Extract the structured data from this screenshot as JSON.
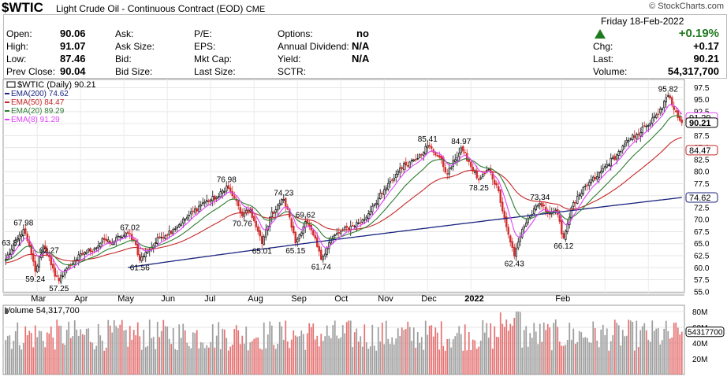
{
  "header": {
    "symbol": "$WTIC",
    "description": "Light Crude Oil - Continuous Contract (EOD)",
    "exchange": "CME",
    "source": "© StockCharts.com",
    "day_date": "Friday  18-Feb-2022",
    "quote": [
      {
        "label": "Open:",
        "value": "90.06"
      },
      {
        "label": "High:",
        "value": "91.07"
      },
      {
        "label": "Low:",
        "value": "87.46"
      },
      {
        "label": "Prev Close:",
        "value": "90.04"
      }
    ],
    "col2": [
      "Ask:",
      "Ask Size:",
      "Bid:",
      "Bid Size:"
    ],
    "col3": [
      "P/E:",
      "EPS:",
      "Mkt Cap:",
      "Last Size:"
    ],
    "col4": [
      {
        "label": "Options:",
        "value": "no"
      },
      {
        "label": "Annual Dividend:",
        "value": "N/A"
      },
      {
        "label": "Yield:",
        "value": "N/A"
      },
      {
        "label": "SCTR:",
        "value": ""
      }
    ],
    "change_pct": "+0.19%",
    "stats": [
      {
        "label": "Chg:",
        "value": "+0.17"
      },
      {
        "label": "Last:",
        "value": "90.21"
      },
      {
        "label": "Volume:",
        "value": "54,317,700"
      }
    ]
  },
  "chart_data": [
    {
      "type": "line",
      "title": "$WTIC (Daily) 90.21",
      "legend": [
        {
          "name": "EMA(200) 74.62",
          "color": "#1a237e"
        },
        {
          "name": "EMA(50) 84.47",
          "color": "#c62828"
        },
        {
          "name": "EMA(20) 89.29",
          "color": "#2e7d32"
        },
        {
          "name": "EMA(8) 91.29",
          "color": "#e040fb"
        }
      ],
      "legend_placement": "top-left",
      "x_labels": [
        "Mar",
        "Apr",
        "May",
        "Jun",
        "Jul",
        "Aug",
        "Sep",
        "Oct",
        "Nov",
        "Dec",
        "2022",
        "Feb"
      ],
      "y_ticks": [
        55.0,
        57.5,
        60.0,
        62.5,
        65.0,
        67.5,
        70.0,
        72.5,
        75.0,
        77.5,
        80.0,
        82.5,
        85.0,
        87.5,
        90.0,
        92.5,
        95.0,
        97.5
      ],
      "ylim": [
        54.8,
        99.2
      ],
      "y_axis_side": "right",
      "grid": true,
      "price_anchors": [
        [
          0,
          61.8
        ],
        [
          3,
          63.81
        ],
        [
          9,
          67.98
        ],
        [
          13,
          62.8
        ],
        [
          15,
          59.24
        ],
        [
          19,
          64.5
        ],
        [
          22,
          62.27
        ],
        [
          25,
          58.2
        ],
        [
          27,
          57.25
        ],
        [
          30,
          59.5
        ],
        [
          35,
          61.5
        ],
        [
          40,
          63.2
        ],
        [
          45,
          64.0
        ],
        [
          50,
          65.8
        ],
        [
          54,
          65.2
        ],
        [
          58,
          66.5
        ],
        [
          63,
          67.02
        ],
        [
          66,
          64.8
        ],
        [
          68,
          61.56
        ],
        [
          72,
          63.5
        ],
        [
          78,
          66.2
        ],
        [
          85,
          68.0
        ],
        [
          92,
          70.5
        ],
        [
          100,
          73.5
        ],
        [
          108,
          74.8
        ],
        [
          112,
          76.98
        ],
        [
          116,
          74.5
        ],
        [
          120,
          70.76
        ],
        [
          124,
          72.0
        ],
        [
          127,
          68.5
        ],
        [
          130,
          65.01
        ],
        [
          134,
          70.5
        ],
        [
          138,
          73.0
        ],
        [
          141,
          74.23
        ],
        [
          144,
          70.5
        ],
        [
          147,
          65.15
        ],
        [
          152,
          69.62
        ],
        [
          156,
          66.8
        ],
        [
          160,
          61.74
        ],
        [
          165,
          66.0
        ],
        [
          170,
          67.5
        ],
        [
          176,
          68.8
        ],
        [
          182,
          70.0
        ],
        [
          186,
          72.8
        ],
        [
          191,
          75.5
        ],
        [
          196,
          78.2
        ],
        [
          200,
          80.8
        ],
        [
          205,
          82.0
        ],
        [
          210,
          83.5
        ],
        [
          214,
          85.41
        ],
        [
          220,
          83.0
        ],
        [
          224,
          79.5
        ],
        [
          228,
          82.5
        ],
        [
          231,
          84.97
        ],
        [
          236,
          81.0
        ],
        [
          240,
          78.25
        ],
        [
          245,
          80.5
        ],
        [
          250,
          76.0
        ],
        [
          254,
          68.5
        ],
        [
          258,
          62.43
        ],
        [
          262,
          68.0
        ],
        [
          266,
          70.8
        ],
        [
          271,
          73.34
        ],
        [
          275,
          71.5
        ],
        [
          279,
          72.0
        ],
        [
          283,
          66.12
        ],
        [
          287,
          72.5
        ],
        [
          292,
          75.5
        ],
        [
          296,
          77.8
        ],
        [
          300,
          79.0
        ],
        [
          305,
          81.5
        ],
        [
          310,
          83.5
        ],
        [
          316,
          86.5
        ],
        [
          320,
          87.8
        ],
        [
          325,
          89.5
        ],
        [
          331,
          92.0
        ],
        [
          336,
          95.82
        ],
        [
          340,
          92.5
        ],
        [
          343,
          90.21
        ]
      ],
      "ema_levels": {
        "ema200_end": 74.62,
        "ema50_end": 84.47,
        "ema20_end": 89.29,
        "ema8_end": 91.29
      },
      "annotations": [
        {
          "text": "63.81",
          "at": 3,
          "value": 63.81,
          "pos": "above"
        },
        {
          "text": "67.98",
          "at": 9,
          "value": 67.98,
          "pos": "above"
        },
        {
          "text": "59.24",
          "at": 15,
          "value": 59.24,
          "pos": "below"
        },
        {
          "text": "62.27",
          "at": 22,
          "value": 62.27,
          "pos": "above"
        },
        {
          "text": "57.25",
          "at": 27,
          "value": 57.25,
          "pos": "below"
        },
        {
          "text": "67.02",
          "at": 63,
          "value": 67.02,
          "pos": "above"
        },
        {
          "text": "61.56",
          "at": 68,
          "value": 61.56,
          "pos": "below"
        },
        {
          "text": "76.98",
          "at": 112,
          "value": 76.98,
          "pos": "above"
        },
        {
          "text": "70.76",
          "at": 120,
          "value": 70.76,
          "pos": "below"
        },
        {
          "text": "65.01",
          "at": 130,
          "value": 65.01,
          "pos": "below"
        },
        {
          "text": "74.23",
          "at": 141,
          "value": 74.23,
          "pos": "above"
        },
        {
          "text": "65.15",
          "at": 147,
          "value": 65.15,
          "pos": "below"
        },
        {
          "text": "69.62",
          "at": 152,
          "value": 69.62,
          "pos": "above"
        },
        {
          "text": "61.74",
          "at": 160,
          "value": 61.74,
          "pos": "below"
        },
        {
          "text": "85.41",
          "at": 214,
          "value": 85.41,
          "pos": "above"
        },
        {
          "text": "84.97",
          "at": 231,
          "value": 84.97,
          "pos": "above"
        },
        {
          "text": "78.25",
          "at": 240,
          "value": 78.25,
          "pos": "below"
        },
        {
          "text": "62.43",
          "at": 258,
          "value": 62.43,
          "pos": "below"
        },
        {
          "text": "73.34",
          "at": 271,
          "value": 73.34,
          "pos": "above"
        },
        {
          "text": "66.12",
          "at": 283,
          "value": 66.12,
          "pos": "below"
        },
        {
          "text": "95.82",
          "at": 336,
          "value": 95.82,
          "pos": "above"
        }
      ],
      "right_badges": [
        {
          "text": "91.29",
          "value": 91.29,
          "color": "#e040fb"
        },
        {
          "text": "90.21",
          "value": 90.21,
          "color": "#000000",
          "bold": true
        },
        {
          "text": "84.47",
          "value": 84.47,
          "color": "#c62828"
        },
        {
          "text": "74.62",
          "value": 74.62,
          "color": "#1a237e"
        }
      ],
      "up_color": "#111111",
      "down_color": "#d32f2f"
    },
    {
      "type": "bar",
      "title": "Volume 54,317,700",
      "y_ticks": [
        {
          "label": "80M",
          "value": 80
        },
        {
          "label": "60M",
          "value": 60
        },
        {
          "label": "40M",
          "value": 40
        },
        {
          "label": "20M",
          "value": 20
        }
      ],
      "ylim": [
        0,
        88
      ],
      "last_badge": "54317700",
      "last_value_m": 54.3,
      "up_color": "#9e9e9e",
      "down_color": "#e57373"
    }
  ]
}
